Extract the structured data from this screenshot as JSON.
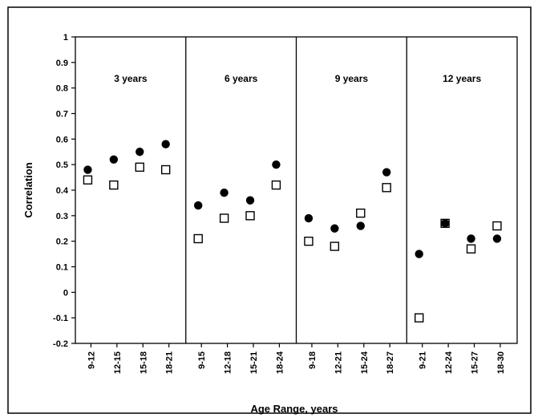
{
  "chart_data": {
    "type": "scatter",
    "xlabel": "Age Range, years",
    "ylabel": "Correlation",
    "ylim": [
      -0.2,
      1
    ],
    "yticks": [
      "1",
      "0.9",
      "0.8",
      "0.7",
      "0.6",
      "0.5",
      "0.4",
      "0.3",
      "0.2",
      "0.1",
      "0",
      "-0.1",
      "-0.2"
    ],
    "grid": false,
    "panels": [
      {
        "label": "3   years",
        "categories": [
          "9-12",
          "12-15",
          "15-18",
          "18-21"
        ],
        "filled_circle": [
          0.48,
          0.52,
          0.55,
          0.58
        ],
        "open_square": [
          0.44,
          0.42,
          0.49,
          0.48
        ]
      },
      {
        "label": "6   years",
        "categories": [
          "9-15",
          "12-18",
          "15-21",
          "18-24"
        ],
        "filled_circle": [
          0.34,
          0.39,
          0.36,
          0.5
        ],
        "open_square": [
          0.21,
          0.29,
          0.3,
          0.42
        ]
      },
      {
        "label": "9   years",
        "categories": [
          "9-18",
          "12-21",
          "15-24",
          "18-27"
        ],
        "filled_circle": [
          0.29,
          0.25,
          0.26,
          0.47
        ],
        "open_square": [
          0.2,
          0.18,
          0.31,
          0.41
        ]
      },
      {
        "label": "12   years",
        "categories": [
          "9-21",
          "12-24",
          "15-27",
          "18-30"
        ],
        "filled_circle": [
          0.15,
          0.27,
          0.21,
          0.21
        ],
        "open_square": [
          -0.1,
          0.27,
          0.17,
          0.26
        ]
      }
    ]
  }
}
